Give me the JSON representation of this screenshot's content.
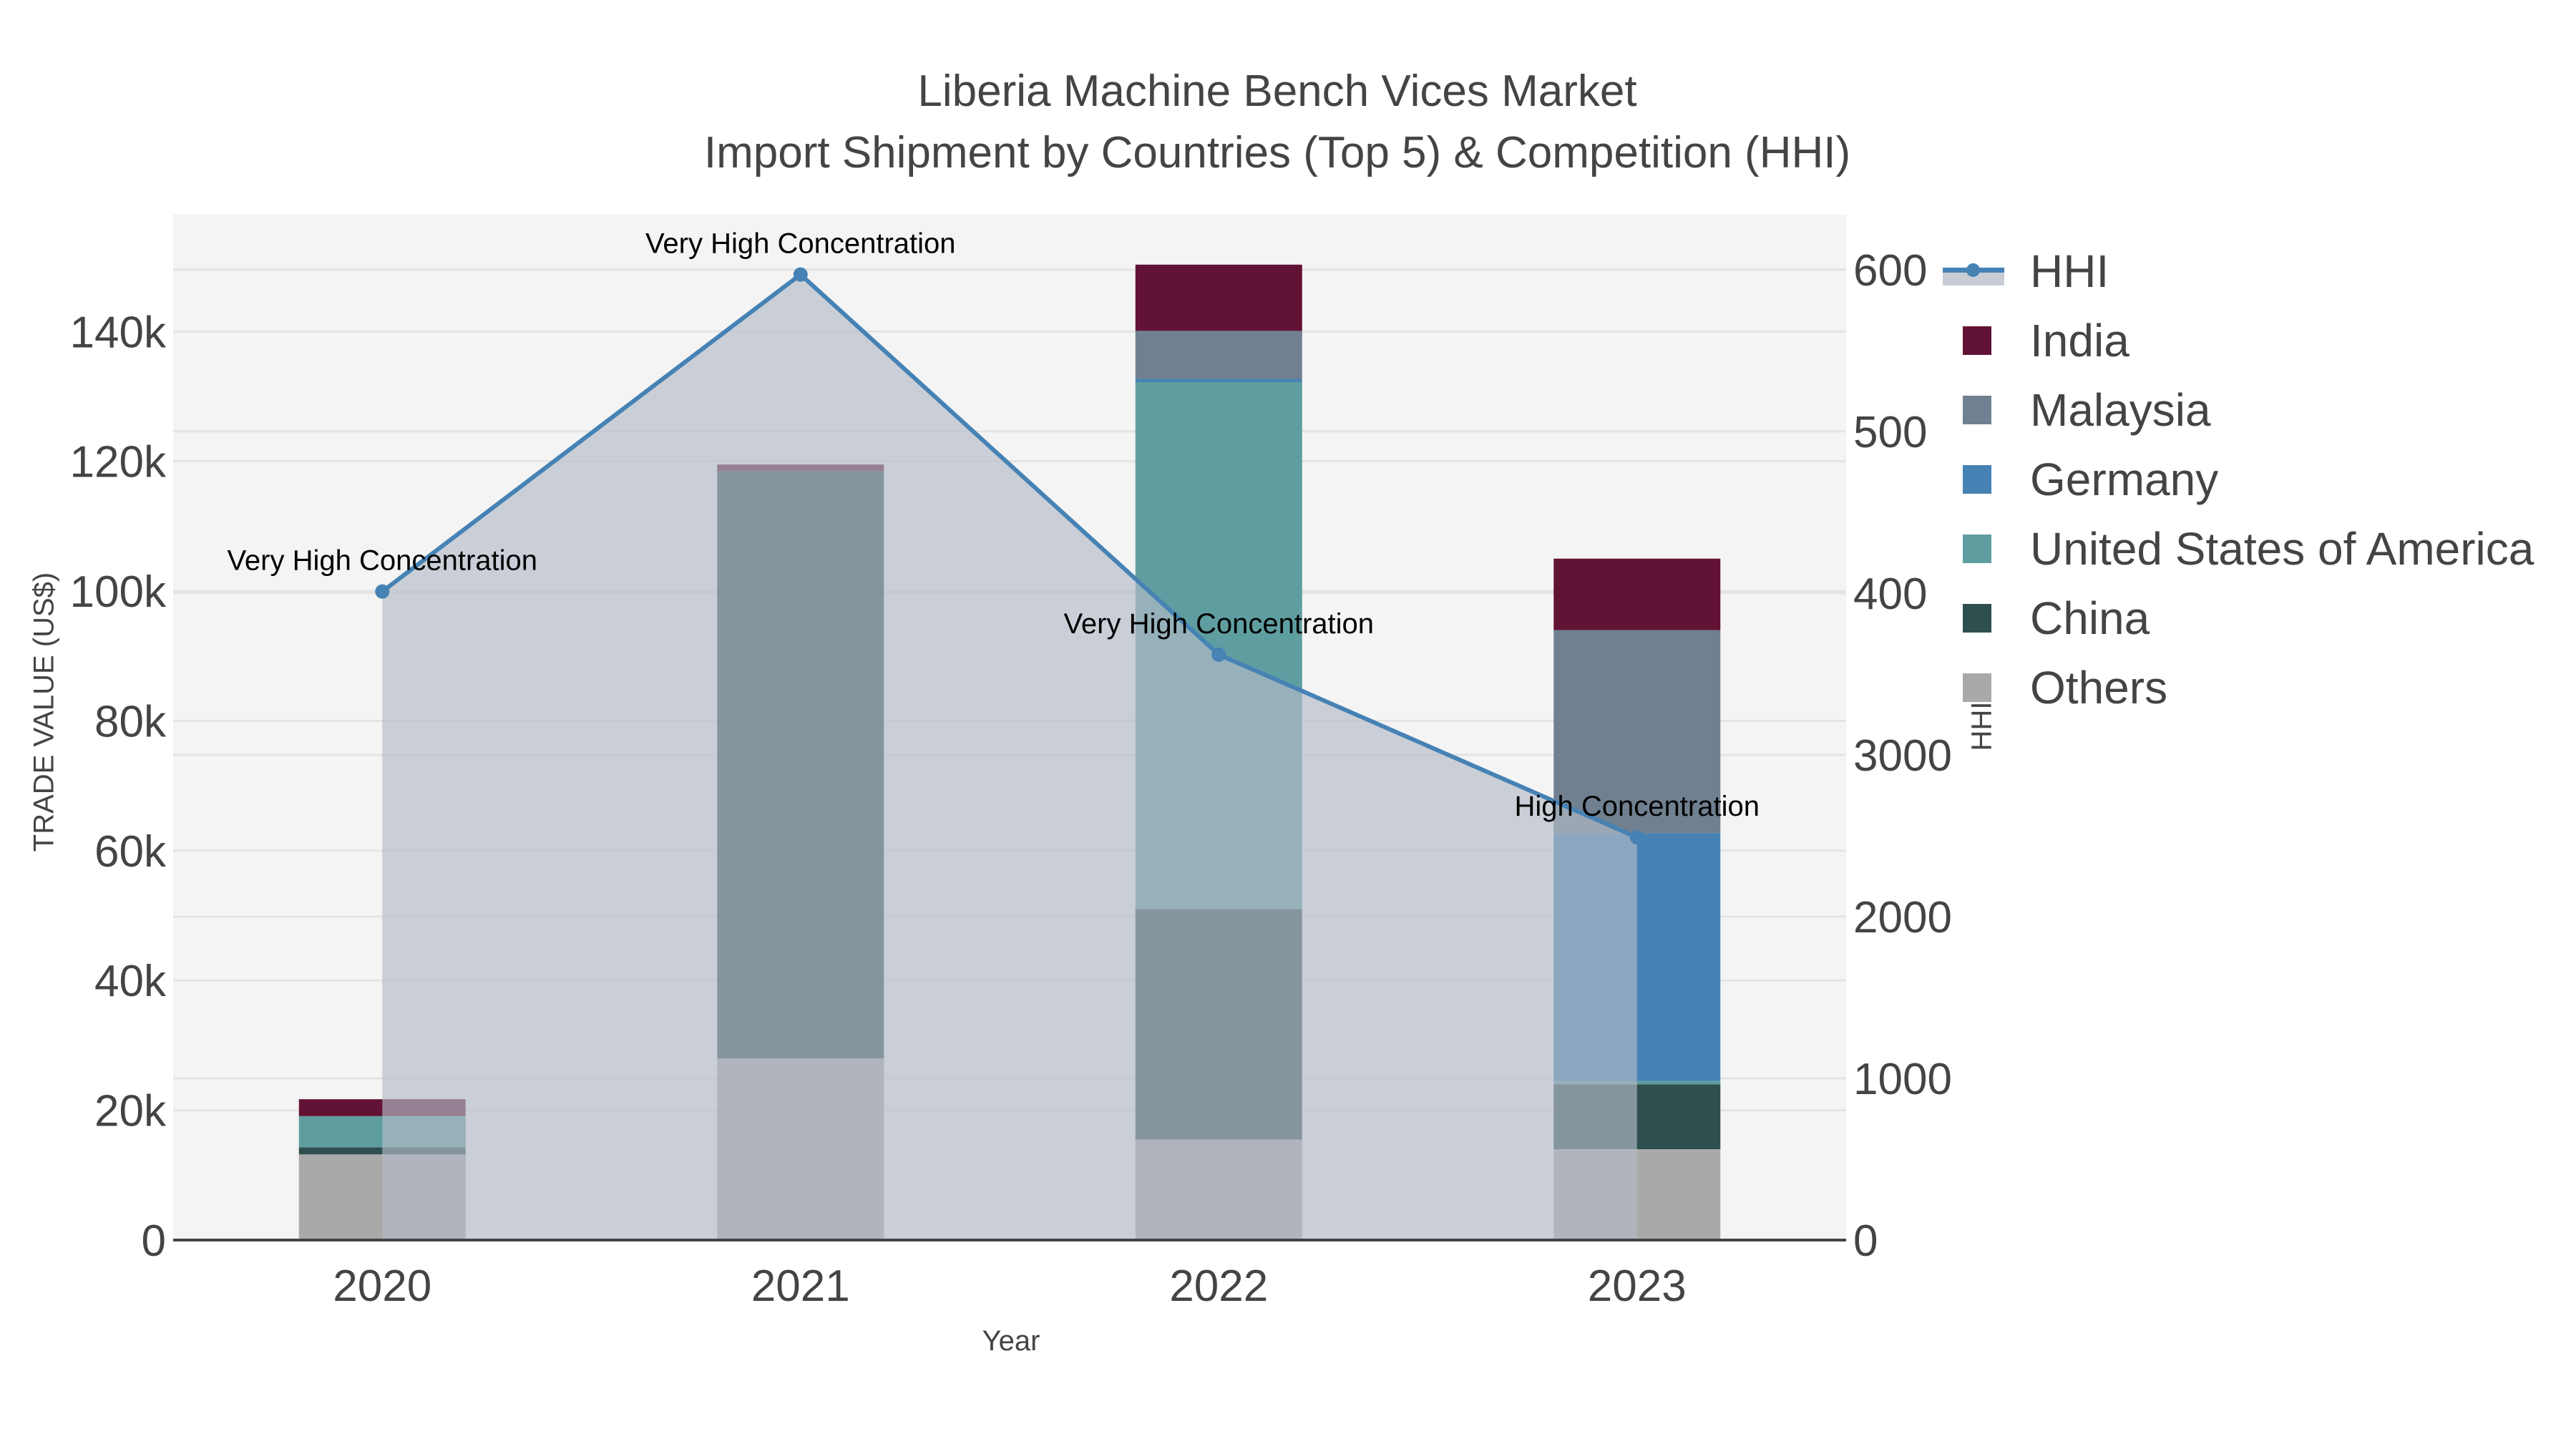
{
  "header": {
    "title_line1": "Liberia Machine Bench Vices Market",
    "title_line2": "Import Shipment by Countries (Top 5) & Competition (HHI)"
  },
  "axes": {
    "x_title": "Year",
    "y_title": "TRADE VALUE (US$)",
    "y2_title": "HHI",
    "y_ticks": [
      "0",
      "20k",
      "40k",
      "60k",
      "80k",
      "100k",
      "120k",
      "140k"
    ],
    "y2_ticks_visible": [
      "0",
      "1000",
      "2000",
      "3000",
      "400",
      "500",
      "600"
    ]
  },
  "legend": {
    "items": [
      {
        "label": "HHI",
        "color": "#4682b4"
      },
      {
        "label": "India",
        "color": "#621234"
      },
      {
        "label": "Malaysia",
        "color": "#708090"
      },
      {
        "label": "Germany",
        "color": "#4682b4"
      },
      {
        "label": "United States of America",
        "color": "#5f9ea0"
      },
      {
        "label": "China",
        "color": "#2f4f4f"
      },
      {
        "label": "Others",
        "color": "#a9a9a9"
      }
    ]
  },
  "annotations": [
    {
      "year": "2020",
      "text": "Very High Concentration"
    },
    {
      "year": "2021",
      "text": "Very High Concentration"
    },
    {
      "year": "2022",
      "text": "Very High Concentration"
    },
    {
      "year": "2023",
      "text": "High Concentration"
    }
  ],
  "chart_data": {
    "type": "bar",
    "stacked": true,
    "title": "Liberia Machine Bench Vices Market — Import Shipment by Countries (Top 5) & Competition (HHI)",
    "xlabel": "Year",
    "ylabel": "TRADE VALUE (US$)",
    "y2label": "HHI",
    "categories": [
      "2020",
      "2021",
      "2022",
      "2023"
    ],
    "ylim": [
      0,
      158000
    ],
    "y2lim": [
      0,
      6340
    ],
    "series": [
      {
        "name": "Others",
        "color": "#a9a9a9",
        "values": [
          13200,
          28000,
          15500,
          14000
        ]
      },
      {
        "name": "China",
        "color": "#2f4f4f",
        "values": [
          1100,
          90500,
          35500,
          10000
        ]
      },
      {
        "name": "United States of America",
        "color": "#5f9ea0",
        "values": [
          4800,
          0,
          81200,
          500
        ]
      },
      {
        "name": "Germany",
        "color": "#4682b4",
        "values": [
          0,
          0,
          500,
          38200
        ]
      },
      {
        "name": "Malaysia",
        "color": "#708090",
        "values": [
          0,
          0,
          7400,
          31300
        ]
      },
      {
        "name": "India",
        "color": "#621234",
        "values": [
          2600,
          1000,
          10200,
          11000
        ]
      }
    ],
    "line_series": {
      "name": "HHI",
      "axis": "y2",
      "color": "#4682b4",
      "fill": "tozeroy",
      "values": [
        4010,
        5970,
        3620,
        2490
      ],
      "labels": [
        "Very High Concentration",
        "Very High Concentration",
        "Very High Concentration",
        "High Concentration"
      ]
    },
    "grid": true,
    "legend_position": "right"
  }
}
